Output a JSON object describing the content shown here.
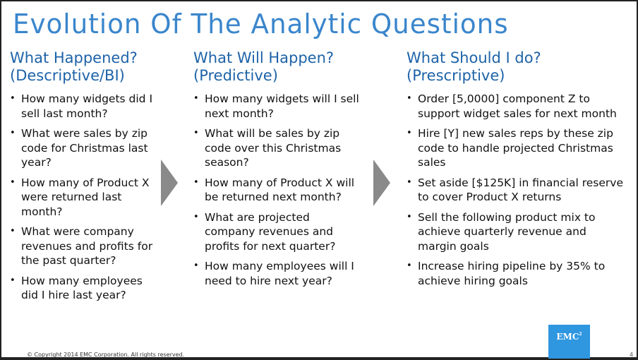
{
  "title": "Evolution Of The Analytic Questions",
  "columns": [
    {
      "heading": "What Happened?\n(Descriptive/BI)",
      "bullets": [
        "How many widgets did I sell last month?",
        "What were sales by zip code for Christmas last year?",
        "How many of Product X were returned last month?",
        "What were company revenues and profits for the past quarter?",
        "How many employees did I hire last year?"
      ]
    },
    {
      "heading": "What Will Happen?\n(Predictive)",
      "bullets": [
        "How many widgets will I sell next month?",
        "What will be sales by zip code over this Christmas season?",
        "How many of Product X will be returned next month?",
        "What are projected company revenues and profits for next quarter?",
        "How many employees will I need to hire next year?"
      ]
    },
    {
      "heading": "What Should I do?\n(Prescriptive)",
      "bullets": [
        "Order [5,0000] component Z to support widget sales for next month",
        "Hire [Y] new sales reps by these zip code to handle projected Christmas sales",
        "Set aside [$125K] in financial reserve to cover Product X returns",
        "Sell the following product mix to achieve quarterly revenue and margin goals",
        "Increase hiring pipeline by 35% to achieve hiring goals"
      ]
    }
  ],
  "footer": {
    "copyright": "© Copyright 2014 EMC Corporation. All rights reserved.",
    "page_number": "4",
    "logo_text": "EMC",
    "logo_sup": "2"
  },
  "colors": {
    "title": "#3a86cc",
    "heading": "#1e63a8",
    "arrow": "#8a8a8a",
    "logo": "#2f96e0"
  }
}
